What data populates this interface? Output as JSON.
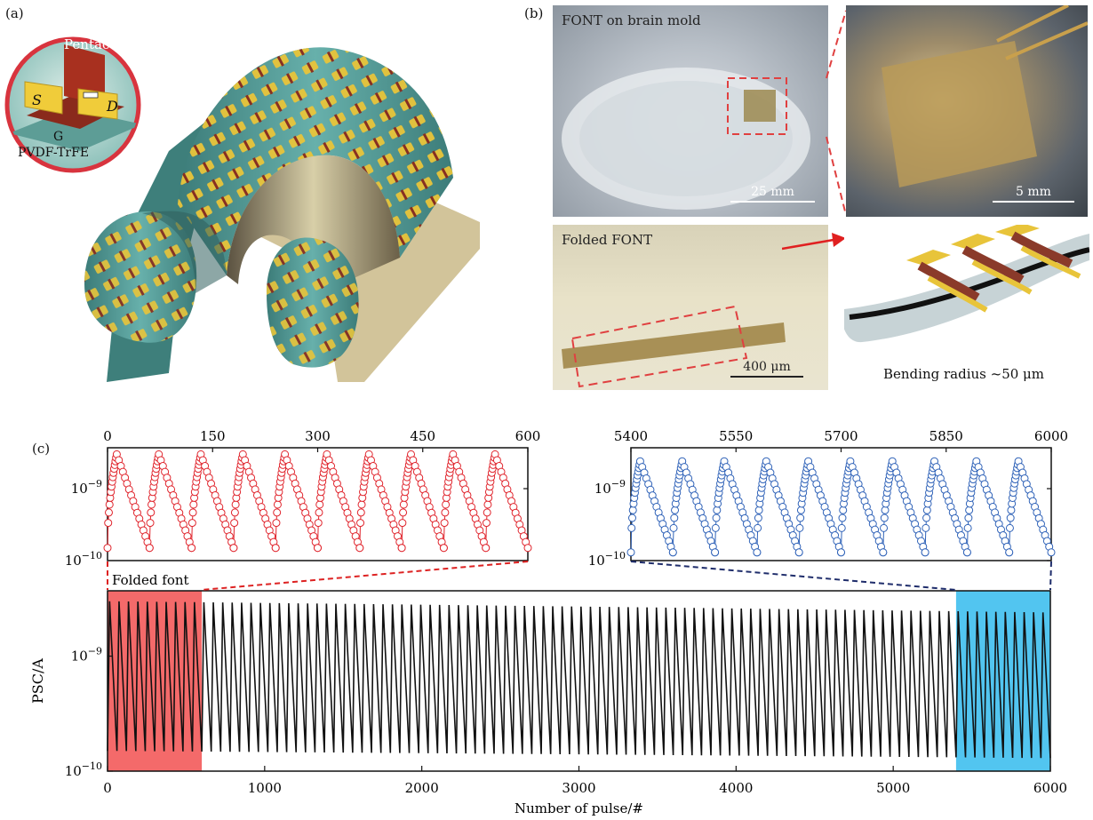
{
  "panels": {
    "a": "(a)",
    "b": "(b)",
    "c": "(c)"
  },
  "panel_a": {
    "inset_labels": {
      "semiconductor": "Pentacene",
      "source": "S",
      "drain": "D",
      "gate": "G",
      "dielectric": "PVDF-TrFE"
    },
    "colors": {
      "substrate": "#4f9c98",
      "film": "#d2c49a",
      "electrode": "#e8c43a",
      "channel": "#8a2a1c",
      "inset_ring": "#d8343e"
    }
  },
  "panel_b": {
    "photo_brain": {
      "label": "FONT on brain mold",
      "scale": "25 mm"
    },
    "photo_zoom": {
      "scale": "5 mm"
    },
    "photo_folded": {
      "label": "Folded FONT",
      "scale": "400 μm"
    },
    "render_caption": "Bending radius ~50 μm"
  },
  "chart_data": [
    {
      "type": "line",
      "title": "",
      "xlabel": "Number of pulse/#",
      "ylabel": "PSC/A",
      "yscale": "log",
      "xlim": [
        0,
        6000
      ],
      "ylim": [
        1e-10,
        3.7e-09
      ],
      "xticks": [
        "0",
        "1000",
        "2000",
        "3000",
        "4000",
        "5000",
        "6000"
      ],
      "yticks": [
        "10−10",
        "10−9"
      ],
      "annotations": [
        "Folded font"
      ],
      "cycle_period": 60,
      "peak_values": {
        "start": 3e-09,
        "end": 2.4e-09
      },
      "min_values": {
        "start": 1.5e-10,
        "end": 1.3e-10
      },
      "highlights": [
        {
          "range": [
            0,
            600
          ],
          "color": "#f46a6a"
        },
        {
          "range": [
            5400,
            6000
          ],
          "color": "#52c5f0"
        }
      ],
      "series": [
        {
          "values_note_color": "#111111"
        }
      ],
      "grid": false
    },
    {
      "type": "scatter",
      "xlim": [
        0,
        600
      ],
      "xticks": [
        "0",
        "150",
        "300",
        "450",
        "600"
      ],
      "yticks": [
        "10−10",
        "10−9"
      ],
      "ylim": [
        1e-10,
        3.7e-09
      ],
      "yscale": "log",
      "cycle_period": 60,
      "peak": 3e-09,
      "min": 1.5e-10,
      "color": "#e0242c"
    },
    {
      "type": "scatter",
      "xlim": [
        5400,
        6000
      ],
      "xticks": [
        "5400",
        "5550",
        "5700",
        "5850",
        "6000"
      ],
      "yticks": [
        "10−10",
        "10−9"
      ],
      "ylim": [
        1e-10,
        3.7e-09
      ],
      "yscale": "log",
      "cycle_period": 60,
      "peak": 2.4e-09,
      "min": 1.3e-10,
      "color": "#2f62b8"
    }
  ]
}
